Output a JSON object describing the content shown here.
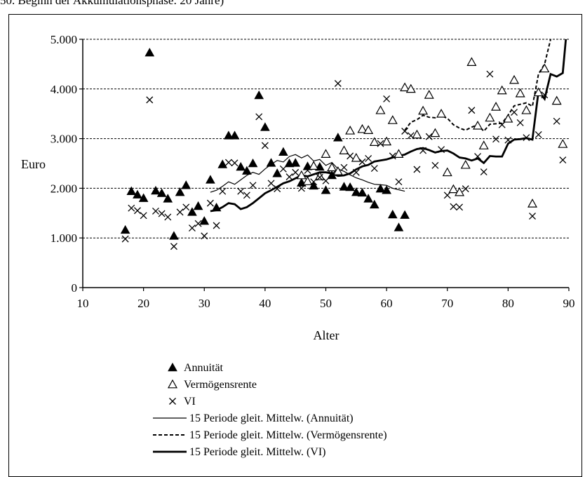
{
  "caption": "50. Beginn der Akkumulationsphase: 20 Jahre)",
  "chart_data": {
    "type": "scatter",
    "xlabel": "Alter",
    "ylabel": "Euro",
    "xlim": [
      10,
      90
    ],
    "ylim": [
      0,
      5000
    ],
    "xticks": [
      10,
      20,
      30,
      40,
      50,
      60,
      70,
      80,
      90
    ],
    "yticks": [
      0,
      1000,
      2000,
      3000,
      4000,
      5000
    ],
    "xtick_labels": [
      "10",
      "20",
      "30",
      "40",
      "50",
      "60",
      "70",
      "80",
      "90"
    ],
    "ytick_labels": [
      "0",
      "1.000",
      "2.000",
      "3.000",
      "4.000",
      "5.000"
    ],
    "grid": "horizontal dashed",
    "legend_position": "bottom-left",
    "series": [
      {
        "name": "Annuität",
        "kind": "scatter",
        "marker": "filled-triangle",
        "points": [
          [
            17,
            1160
          ],
          [
            18,
            1940
          ],
          [
            19,
            1870
          ],
          [
            20,
            1800
          ],
          [
            21,
            4730
          ],
          [
            22,
            1950
          ],
          [
            23,
            1900
          ],
          [
            24,
            1790
          ],
          [
            25,
            1040
          ],
          [
            26,
            1920
          ],
          [
            27,
            2060
          ],
          [
            28,
            1520
          ],
          [
            29,
            1640
          ],
          [
            30,
            1340
          ],
          [
            31,
            2170
          ],
          [
            32,
            1610
          ],
          [
            33,
            2480
          ],
          [
            34,
            3060
          ],
          [
            35,
            3060
          ],
          [
            36,
            2430
          ],
          [
            37,
            2350
          ],
          [
            38,
            2500
          ],
          [
            39,
            3870
          ],
          [
            40,
            3230
          ],
          [
            41,
            2510
          ],
          [
            42,
            2300
          ],
          [
            43,
            2730
          ],
          [
            44,
            2500
          ],
          [
            45,
            2510
          ],
          [
            46,
            2110
          ],
          [
            47,
            2440
          ],
          [
            48,
            2050
          ],
          [
            49,
            2430
          ],
          [
            50,
            1960
          ],
          [
            51,
            2260
          ],
          [
            52,
            3020
          ],
          [
            53,
            2030
          ],
          [
            54,
            2020
          ],
          [
            55,
            1920
          ],
          [
            56,
            1910
          ],
          [
            57,
            1790
          ],
          [
            58,
            1670
          ],
          [
            59,
            1990
          ],
          [
            60,
            1960
          ],
          [
            61,
            1470
          ],
          [
            62,
            1210
          ],
          [
            63,
            1460
          ]
        ]
      },
      {
        "name": "Vermögensrente",
        "kind": "scatter",
        "marker": "open-triangle",
        "points": [
          [
            46,
            2260
          ],
          [
            47,
            2140
          ],
          [
            48,
            2450
          ],
          [
            49,
            2240
          ],
          [
            50,
            2690
          ],
          [
            51,
            2420
          ],
          [
            52,
            2340
          ],
          [
            53,
            2760
          ],
          [
            54,
            3160
          ],
          [
            55,
            2610
          ],
          [
            56,
            3190
          ],
          [
            57,
            3170
          ],
          [
            58,
            2930
          ],
          [
            59,
            3570
          ],
          [
            60,
            2940
          ],
          [
            61,
            3370
          ],
          [
            62,
            2690
          ],
          [
            63,
            4030
          ],
          [
            64,
            4000
          ],
          [
            65,
            3080
          ],
          [
            66,
            3560
          ],
          [
            67,
            3880
          ],
          [
            68,
            3110
          ],
          [
            69,
            3500
          ],
          [
            70,
            2320
          ],
          [
            71,
            1980
          ],
          [
            72,
            1920
          ],
          [
            73,
            2470
          ],
          [
            74,
            4540
          ],
          [
            75,
            3260
          ],
          [
            76,
            2860
          ],
          [
            77,
            3420
          ],
          [
            78,
            3640
          ],
          [
            79,
            3970
          ],
          [
            80,
            3400
          ],
          [
            81,
            4180
          ],
          [
            82,
            3910
          ],
          [
            83,
            3570
          ],
          [
            84,
            1690
          ],
          [
            85,
            3930
          ],
          [
            86,
            4410
          ],
          [
            88,
            3760
          ],
          [
            89,
            2890
          ]
        ]
      },
      {
        "name": "VI",
        "kind": "scatter",
        "marker": "x",
        "points": [
          [
            17,
            980
          ],
          [
            18,
            1600
          ],
          [
            19,
            1550
          ],
          [
            20,
            1450
          ],
          [
            21,
            3780
          ],
          [
            22,
            1540
          ],
          [
            23,
            1490
          ],
          [
            24,
            1420
          ],
          [
            25,
            830
          ],
          [
            26,
            1520
          ],
          [
            27,
            1620
          ],
          [
            28,
            1200
          ],
          [
            29,
            1290
          ],
          [
            30,
            1040
          ],
          [
            31,
            1700
          ],
          [
            32,
            1250
          ],
          [
            33,
            1940
          ],
          [
            34,
            2520
          ],
          [
            35,
            2510
          ],
          [
            36,
            1940
          ],
          [
            37,
            1860
          ],
          [
            38,
            2060
          ],
          [
            39,
            3440
          ],
          [
            40,
            2860
          ],
          [
            41,
            2100
          ],
          [
            42,
            1990
          ],
          [
            43,
            2390
          ],
          [
            44,
            2230
          ],
          [
            45,
            2320
          ],
          [
            46,
            2000
          ],
          [
            47,
            2360
          ],
          [
            48,
            2130
          ],
          [
            49,
            2220
          ],
          [
            50,
            2150
          ],
          [
            51,
            2280
          ],
          [
            52,
            4110
          ],
          [
            53,
            2420
          ],
          [
            54,
            2650
          ],
          [
            55,
            2320
          ],
          [
            56,
            2530
          ],
          [
            57,
            2600
          ],
          [
            58,
            2400
          ],
          [
            59,
            2900
          ],
          [
            60,
            3800
          ],
          [
            61,
            2650
          ],
          [
            62,
            2130
          ],
          [
            63,
            3150
          ],
          [
            64,
            3060
          ],
          [
            65,
            2380
          ],
          [
            66,
            2760
          ],
          [
            67,
            3040
          ],
          [
            68,
            2460
          ],
          [
            69,
            2780
          ],
          [
            70,
            1860
          ],
          [
            71,
            1630
          ],
          [
            72,
            1620
          ],
          [
            73,
            1990
          ],
          [
            74,
            3570
          ],
          [
            75,
            2640
          ],
          [
            76,
            2330
          ],
          [
            77,
            4300
          ],
          [
            78,
            2990
          ],
          [
            79,
            3280
          ],
          [
            80,
            2970
          ],
          [
            81,
            3530
          ],
          [
            82,
            3320
          ],
          [
            83,
            3020
          ],
          [
            84,
            1440
          ],
          [
            85,
            3080
          ],
          [
            86,
            3880
          ],
          [
            88,
            3350
          ],
          [
            89,
            2570
          ]
        ]
      },
      {
        "name": "15 Periode gleit. Mittelw. (Annuität)",
        "kind": "line",
        "style": "thin",
        "points": [
          [
            31,
            1920
          ],
          [
            32,
            1960
          ],
          [
            33,
            2040
          ],
          [
            34,
            2130
          ],
          [
            35,
            2080
          ],
          [
            36,
            2170
          ],
          [
            37,
            2260
          ],
          [
            38,
            2320
          ],
          [
            39,
            2280
          ],
          [
            40,
            2390
          ],
          [
            41,
            2480
          ],
          [
            42,
            2560
          ],
          [
            43,
            2530
          ],
          [
            44,
            2640
          ],
          [
            45,
            2680
          ],
          [
            46,
            2610
          ],
          [
            47,
            2670
          ],
          [
            48,
            2550
          ],
          [
            49,
            2580
          ],
          [
            50,
            2460
          ],
          [
            51,
            2520
          ],
          [
            52,
            2390
          ],
          [
            53,
            2340
          ],
          [
            54,
            2270
          ],
          [
            55,
            2210
          ],
          [
            56,
            2170
          ],
          [
            57,
            2120
          ],
          [
            58,
            2080
          ],
          [
            59,
            2070
          ],
          [
            60,
            2060
          ],
          [
            61,
            2000
          ],
          [
            62,
            1970
          ],
          [
            63,
            1940
          ]
        ]
      },
      {
        "name": "15 Periode gleit. Mittelw. (Vermögensrente)",
        "kind": "line",
        "style": "dashed",
        "points": [
          [
            63,
            3170
          ],
          [
            64,
            3330
          ],
          [
            65,
            3380
          ],
          [
            66,
            3470
          ],
          [
            67,
            3430
          ],
          [
            68,
            3420
          ],
          [
            69,
            3460
          ],
          [
            70,
            3410
          ],
          [
            71,
            3280
          ],
          [
            72,
            3210
          ],
          [
            73,
            3170
          ],
          [
            74,
            3230
          ],
          [
            75,
            3280
          ],
          [
            76,
            3150
          ],
          [
            77,
            3290
          ],
          [
            78,
            3300
          ],
          [
            79,
            3310
          ],
          [
            80,
            3470
          ],
          [
            81,
            3660
          ],
          [
            82,
            3690
          ],
          [
            83,
            3720
          ],
          [
            84,
            3650
          ],
          [
            85,
            4300
          ],
          [
            86,
            4500
          ],
          [
            87,
            5000
          ]
        ]
      },
      {
        "name": "15 Periode gleit. Mittelw. (VI)",
        "kind": "line",
        "style": "thick",
        "points": [
          [
            31,
            1540
          ],
          [
            32,
            1560
          ],
          [
            33,
            1620
          ],
          [
            34,
            1700
          ],
          [
            35,
            1680
          ],
          [
            36,
            1580
          ],
          [
            37,
            1620
          ],
          [
            38,
            1700
          ],
          [
            39,
            1800
          ],
          [
            40,
            1900
          ],
          [
            41,
            1960
          ],
          [
            42,
            2030
          ],
          [
            43,
            2100
          ],
          [
            44,
            2140
          ],
          [
            45,
            2200
          ],
          [
            46,
            2260
          ],
          [
            47,
            2240
          ],
          [
            48,
            2280
          ],
          [
            49,
            2320
          ],
          [
            50,
            2320
          ],
          [
            51,
            2300
          ],
          [
            52,
            2250
          ],
          [
            53,
            2260
          ],
          [
            54,
            2300
          ],
          [
            55,
            2380
          ],
          [
            56,
            2440
          ],
          [
            57,
            2470
          ],
          [
            58,
            2540
          ],
          [
            59,
            2560
          ],
          [
            60,
            2580
          ],
          [
            61,
            2620
          ],
          [
            62,
            2650
          ],
          [
            63,
            2680
          ],
          [
            64,
            2740
          ],
          [
            65,
            2790
          ],
          [
            66,
            2810
          ],
          [
            67,
            2770
          ],
          [
            68,
            2720
          ],
          [
            69,
            2750
          ],
          [
            70,
            2760
          ],
          [
            71,
            2700
          ],
          [
            72,
            2620
          ],
          [
            73,
            2600
          ],
          [
            74,
            2560
          ],
          [
            75,
            2600
          ],
          [
            76,
            2510
          ],
          [
            77,
            2650
          ],
          [
            78,
            2640
          ],
          [
            79,
            2640
          ],
          [
            80,
            2900
          ],
          [
            81,
            2980
          ],
          [
            82,
            2990
          ],
          [
            83,
            3010
          ],
          [
            84,
            2980
          ],
          [
            85,
            3950
          ],
          [
            86,
            3800
          ],
          [
            87,
            4300
          ],
          [
            88,
            4250
          ],
          [
            89,
            4320
          ],
          [
            89.5,
            5000
          ]
        ]
      }
    ]
  }
}
